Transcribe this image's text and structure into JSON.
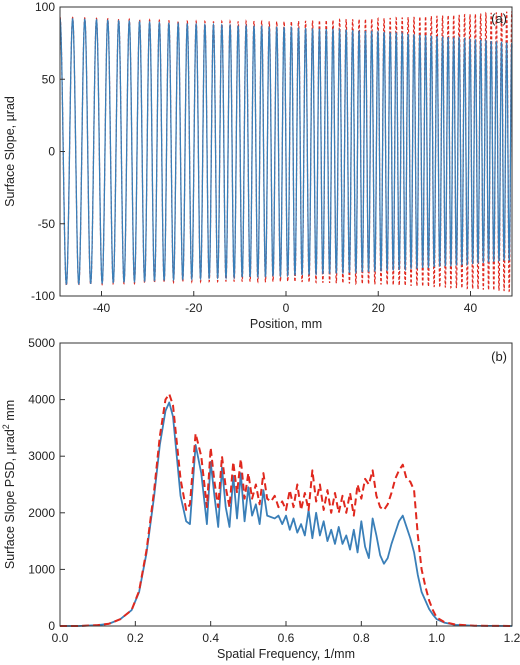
{
  "chart_data": [
    {
      "panel": "(a)",
      "type": "line",
      "xlabel": "Position, mm",
      "ylabel": "Surface Slope, µrad",
      "xlim": [
        -49,
        49
      ],
      "ylim": [
        -100,
        100
      ],
      "xticks": [
        -40,
        -20,
        0,
        20,
        40
      ],
      "yticks": [
        -100,
        -50,
        0,
        50,
        100
      ],
      "grid": false,
      "description_of_signal": "chirped sinusoid, period decreasing from about 2.8 mm to about 1.1 mm across the field",
      "series": [
        {
          "style": "solid",
          "color": "#3a7fb8",
          "x": [
            -49,
            -40,
            -20,
            0,
            20,
            40,
            49
          ],
          "amplitude": [
            92,
            91,
            88,
            86,
            83,
            78,
            75
          ]
        },
        {
          "style": "dashed",
          "color": "#e0281e",
          "x": [
            -49,
            -40,
            -20,
            0,
            20,
            40,
            49
          ],
          "amplitude": [
            93,
            92,
            90,
            90,
            92,
            95,
            97
          ]
        }
      ]
    },
    {
      "panel": "(b)",
      "type": "line",
      "xlabel": "Spatial Frequency, 1/mm",
      "ylabel_main": "Surface Slope PSD, µrad",
      "ylabel_sup": "2",
      "ylabel_tail": " mm",
      "xlim": [
        0,
        1.2
      ],
      "ylim": [
        0,
        5000
      ],
      "xticks": [
        "0.0",
        "0.2",
        "0.4",
        "0.6",
        "0.8",
        "1.0",
        "1.2"
      ],
      "yticks": [
        "0",
        "1000",
        "2000",
        "3000",
        "4000",
        "5000"
      ],
      "grid": false,
      "series": [
        {
          "style": "solid",
          "color": "#3a7fb8",
          "points": [
            [
              0,
              0
            ],
            [
              0.05,
              0
            ],
            [
              0.1,
              15
            ],
            [
              0.13,
              40
            ],
            [
              0.16,
              120
            ],
            [
              0.19,
              280
            ],
            [
              0.21,
              600
            ],
            [
              0.23,
              1300
            ],
            [
              0.25,
              2300
            ],
            [
              0.265,
              3200
            ],
            [
              0.28,
              3800
            ],
            [
              0.29,
              3950
            ],
            [
              0.3,
              3700
            ],
            [
              0.31,
              3000
            ],
            [
              0.32,
              2300
            ],
            [
              0.335,
              1850
            ],
            [
              0.345,
              1800
            ],
            [
              0.36,
              3200
            ],
            [
              0.375,
              2700
            ],
            [
              0.385,
              2100
            ],
            [
              0.39,
              1800
            ],
            [
              0.4,
              2900
            ],
            [
              0.41,
              2300
            ],
            [
              0.42,
              1750
            ],
            [
              0.43,
              2800
            ],
            [
              0.44,
              2100
            ],
            [
              0.45,
              1750
            ],
            [
              0.46,
              2650
            ],
            [
              0.47,
              1900
            ],
            [
              0.48,
              2700
            ],
            [
              0.49,
              1850
            ],
            [
              0.5,
              2450
            ],
            [
              0.51,
              1950
            ],
            [
              0.52,
              2150
            ],
            [
              0.53,
              1800
            ],
            [
              0.54,
              2400
            ],
            [
              0.55,
              1950
            ],
            [
              0.57,
              1900
            ],
            [
              0.58,
              1950
            ],
            [
              0.59,
              1800
            ],
            [
              0.6,
              1950
            ],
            [
              0.61,
              1700
            ],
            [
              0.62,
              1900
            ],
            [
              0.63,
              1650
            ],
            [
              0.64,
              1800
            ],
            [
              0.65,
              1600
            ],
            [
              0.66,
              2050
            ],
            [
              0.67,
              1550
            ],
            [
              0.68,
              2000
            ],
            [
              0.69,
              1600
            ],
            [
              0.7,
              1850
            ],
            [
              0.71,
              1500
            ],
            [
              0.72,
              1700
            ],
            [
              0.73,
              1450
            ],
            [
              0.74,
              1750
            ],
            [
              0.75,
              1450
            ],
            [
              0.76,
              1600
            ],
            [
              0.77,
              1350
            ],
            [
              0.78,
              1700
            ],
            [
              0.79,
              1300
            ],
            [
              0.8,
              1850
            ],
            [
              0.81,
              1400
            ],
            [
              0.82,
              1200
            ],
            [
              0.83,
              1900
            ],
            [
              0.84,
              1600
            ],
            [
              0.85,
              1250
            ],
            [
              0.86,
              1100
            ],
            [
              0.87,
              1200
            ],
            [
              0.88,
              1450
            ],
            [
              0.89,
              1650
            ],
            [
              0.9,
              1850
            ],
            [
              0.91,
              1950
            ],
            [
              0.92,
              1750
            ],
            [
              0.93,
              1550
            ],
            [
              0.94,
              1300
            ],
            [
              0.95,
              900
            ],
            [
              0.96,
              600
            ],
            [
              0.97,
              450
            ],
            [
              0.98,
              300
            ],
            [
              0.99,
              200
            ],
            [
              1.0,
              120
            ],
            [
              1.02,
              60
            ],
            [
              1.05,
              20
            ],
            [
              1.1,
              5
            ],
            [
              1.2,
              0
            ]
          ]
        },
        {
          "style": "dashed",
          "color": "#e0281e",
          "points": [
            [
              0,
              0
            ],
            [
              0.05,
              0
            ],
            [
              0.1,
              15
            ],
            [
              0.13,
              40
            ],
            [
              0.16,
              120
            ],
            [
              0.19,
              280
            ],
            [
              0.21,
              620
            ],
            [
              0.23,
              1350
            ],
            [
              0.25,
              2400
            ],
            [
              0.265,
              3350
            ],
            [
              0.28,
              4000
            ],
            [
              0.29,
              4100
            ],
            [
              0.3,
              3900
            ],
            [
              0.31,
              3250
            ],
            [
              0.32,
              2600
            ],
            [
              0.335,
              2050
            ],
            [
              0.345,
              2150
            ],
            [
              0.36,
              3400
            ],
            [
              0.375,
              3000
            ],
            [
              0.385,
              2400
            ],
            [
              0.39,
              2100
            ],
            [
              0.4,
              3150
            ],
            [
              0.41,
              2550
            ],
            [
              0.42,
              2100
            ],
            [
              0.43,
              3000
            ],
            [
              0.44,
              2450
            ],
            [
              0.45,
              2100
            ],
            [
              0.46,
              2900
            ],
            [
              0.47,
              2350
            ],
            [
              0.48,
              2950
            ],
            [
              0.49,
              2250
            ],
            [
              0.5,
              2700
            ],
            [
              0.51,
              2250
            ],
            [
              0.52,
              2500
            ],
            [
              0.53,
              2150
            ],
            [
              0.54,
              2700
            ],
            [
              0.55,
              2250
            ],
            [
              0.56,
              2200
            ],
            [
              0.57,
              2300
            ],
            [
              0.58,
              2100
            ],
            [
              0.59,
              2200
            ],
            [
              0.6,
              2050
            ],
            [
              0.61,
              2400
            ],
            [
              0.62,
              2100
            ],
            [
              0.63,
              2500
            ],
            [
              0.64,
              2050
            ],
            [
              0.65,
              2350
            ],
            [
              0.66,
              2050
            ],
            [
              0.67,
              2750
            ],
            [
              0.68,
              2200
            ],
            [
              0.69,
              2500
            ],
            [
              0.7,
              2050
            ],
            [
              0.71,
              2400
            ],
            [
              0.72,
              2000
            ],
            [
              0.73,
              2350
            ],
            [
              0.74,
              2000
            ],
            [
              0.75,
              2300
            ],
            [
              0.76,
              2000
            ],
            [
              0.77,
              2350
            ],
            [
              0.78,
              1950
            ],
            [
              0.79,
              2500
            ],
            [
              0.8,
              2250
            ],
            [
              0.81,
              2600
            ],
            [
              0.82,
              2500
            ],
            [
              0.83,
              2750
            ],
            [
              0.84,
              2300
            ],
            [
              0.85,
              2100
            ],
            [
              0.86,
              2050
            ],
            [
              0.87,
              2150
            ],
            [
              0.88,
              2350
            ],
            [
              0.89,
              2600
            ],
            [
              0.9,
              2750
            ],
            [
              0.91,
              2850
            ],
            [
              0.92,
              2600
            ],
            [
              0.93,
              2550
            ],
            [
              0.94,
              2400
            ],
            [
              0.95,
              1600
            ],
            [
              0.96,
              1000
            ],
            [
              0.97,
              700
            ],
            [
              0.98,
              450
            ],
            [
              0.99,
              280
            ],
            [
              1.0,
              150
            ],
            [
              1.02,
              70
            ],
            [
              1.05,
              25
            ],
            [
              1.1,
              5
            ],
            [
              1.2,
              0
            ]
          ]
        }
      ]
    }
  ]
}
